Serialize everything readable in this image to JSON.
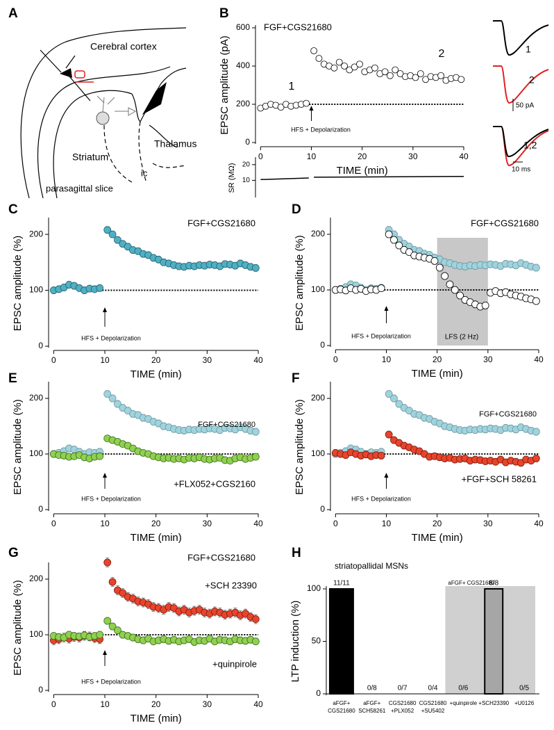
{
  "panel_labels": [
    "A",
    "B",
    "C",
    "D",
    "E",
    "F",
    "G",
    "H"
  ],
  "diagram": {
    "labels": [
      "Cerebral cortex",
      "Striatum",
      "Thalamus",
      "ic",
      "parasagittal slice"
    ]
  },
  "traces": {
    "labels": [
      "1",
      "2",
      "1,2"
    ],
    "scale_y": "50 pA",
    "scale_x": "10 ms"
  },
  "chart_data": [
    {
      "type": "scatter",
      "title": "FGF+CGS21680",
      "xlabel": "TIME (min)",
      "ylabel": "EPSC amplitude (pA)",
      "annotation": "HFS + Depolarization",
      "annotations": [
        "1",
        "2"
      ],
      "arrow_x": 10,
      "reference": 200,
      "xlim": [
        -1,
        40
      ],
      "xticks": [
        0,
        10,
        20,
        30,
        40
      ],
      "ylim": [
        0,
        600
      ],
      "yticks": [
        0,
        200,
        400,
        600
      ],
      "x": [
        0,
        1,
        2,
        3,
        4,
        5,
        6,
        7,
        8,
        9,
        10.5,
        11.5,
        12.5,
        13.5,
        14.5,
        15.5,
        16.5,
        17.5,
        18.5,
        19.5,
        20.5,
        21.5,
        22.5,
        23.5,
        24.5,
        25.5,
        26.5,
        27.5,
        28.5,
        29.5,
        30.5,
        31.5,
        32.5,
        33.5,
        34.5,
        35.5,
        36.5,
        37.5,
        38.5,
        39.5
      ],
      "series": [
        {
          "color": "#ffffff",
          "edge": "#000000",
          "values": [
            180,
            190,
            200,
            195,
            185,
            200,
            190,
            195,
            200,
            205,
            480,
            440,
            410,
            400,
            390,
            420,
            400,
            380,
            395,
            410,
            370,
            380,
            390,
            360,
            370,
            350,
            380,
            360,
            345,
            350,
            340,
            360,
            330,
            345,
            340,
            350,
            325,
            335,
            340,
            330
          ]
        }
      ]
    },
    {
      "type": "line",
      "ylabel": "SR (MΩ)",
      "xlim": [
        -1,
        40
      ],
      "ylim": [
        0,
        23
      ],
      "yticks": [
        10,
        20
      ],
      "x": [
        0,
        9.5,
        10,
        10.5,
        40
      ],
      "series": [
        {
          "color": "#000000",
          "values": [
            10.5,
            11.5,
            null,
            12,
            12.5
          ]
        }
      ]
    },
    {
      "type": "scatter",
      "title": "FGF+CGS21680",
      "xlabel": "TIME (min)",
      "ylabel": "EPSC amplitude (%)",
      "annotation": "HFS + Depolarization",
      "arrow_x": 10,
      "reference": 100,
      "xlim": [
        -1,
        40
      ],
      "xticks": [
        0,
        10,
        20,
        30,
        40
      ],
      "ylim": [
        0,
        225
      ],
      "yticks": [
        0,
        100,
        200
      ],
      "x": [
        0,
        1,
        2,
        3,
        4,
        5,
        6,
        7,
        8,
        9,
        10.5,
        11.5,
        12.5,
        13.5,
        14.5,
        15.5,
        16.5,
        17.5,
        18.5,
        19.5,
        20.5,
        21.5,
        22.5,
        23.5,
        24.5,
        25.5,
        26.5,
        27.5,
        28.5,
        29.5,
        30.5,
        31.5,
        32.5,
        33.5,
        34.5,
        35.5,
        36.5,
        37.5,
        38.5,
        39.5
      ],
      "series": [
        {
          "color": "#4fb0c4",
          "edge": "#24606e",
          "error": 6,
          "values": [
            100,
            102,
            105,
            110,
            108,
            104,
            100,
            103,
            102,
            104,
            208,
            200,
            190,
            183,
            178,
            172,
            170,
            165,
            163,
            158,
            155,
            150,
            148,
            145,
            143,
            142,
            144,
            143,
            145,
            144,
            146,
            145,
            143,
            147,
            146,
            144,
            148,
            145,
            142,
            140
          ]
        }
      ]
    },
    {
      "type": "scatter",
      "title": "FGF+CGS21680",
      "xlabel": "TIME (min)",
      "ylabel": "EPSC amplitude (%)",
      "annotation": "HFS + Depolarization",
      "arrow_x": 10,
      "reference": 100,
      "shade": [
        20,
        30
      ],
      "shade_label": "LFS (2 Hz)",
      "xlim": [
        -1,
        40
      ],
      "xticks": [
        0,
        10,
        20,
        30,
        40
      ],
      "ylim": [
        0,
        225
      ],
      "yticks": [
        0,
        100,
        200
      ],
      "x": [
        0,
        1,
        2,
        3,
        4,
        5,
        6,
        7,
        8,
        9,
        10.5,
        11.5,
        12.5,
        13.5,
        14.5,
        15.5,
        16.5,
        17.5,
        18.5,
        19.5,
        20.5,
        21.5,
        22.5,
        23.5,
        24.5,
        25.5,
        26.5,
        27.5,
        28.5,
        29.5,
        30.5,
        31.5,
        32.5,
        33.5,
        34.5,
        35.5,
        36.5,
        37.5,
        38.5,
        39.5
      ],
      "series": [
        {
          "color": "#9fd3dd",
          "edge": "#6f9aa3",
          "error": 6,
          "values": [
            100,
            102,
            105,
            110,
            108,
            104,
            100,
            103,
            102,
            104,
            208,
            200,
            190,
            183,
            178,
            172,
            170,
            165,
            163,
            158,
            155,
            150,
            148,
            145,
            143,
            142,
            144,
            143,
            145,
            144,
            146,
            145,
            143,
            147,
            146,
            144,
            148,
            145,
            142,
            140
          ]
        },
        {
          "color": "#ffffff",
          "edge": "#000000",
          "error": 6,
          "values": [
            100,
            101,
            99,
            103,
            100,
            102,
            98,
            101,
            100,
            103,
            200,
            190,
            180,
            172,
            168,
            162,
            160,
            158,
            156,
            152,
            140,
            125,
            110,
            100,
            90,
            82,
            78,
            74,
            70,
            72,
            95,
            98,
            94,
            96,
            92,
            90,
            88,
            85,
            83,
            80
          ]
        }
      ]
    },
    {
      "type": "scatter",
      "xlabel": "TIME (min)",
      "ylabel": "EPSC amplitude (%)",
      "annotation": "HFS + Depolarization",
      "arrow_x": 10,
      "reference": 100,
      "xlim": [
        -1,
        40
      ],
      "xticks": [
        0,
        10,
        20,
        30,
        40
      ],
      "ylim": [
        0,
        225
      ],
      "yticks": [
        0,
        100,
        200
      ],
      "x": [
        0,
        1,
        2,
        3,
        4,
        5,
        6,
        7,
        8,
        9,
        10.5,
        11.5,
        12.5,
        13.5,
        14.5,
        15.5,
        16.5,
        17.5,
        18.5,
        19.5,
        20.5,
        21.5,
        22.5,
        23.5,
        24.5,
        25.5,
        26.5,
        27.5,
        28.5,
        29.5,
        30.5,
        31.5,
        32.5,
        33.5,
        34.5,
        35.5,
        36.5,
        37.5,
        38.5,
        39.5
      ],
      "series": [
        {
          "name": "FGF+CGS21680",
          "color": "#9fd3dd",
          "edge": "#6f9aa3",
          "error": 6,
          "values": [
            100,
            102,
            105,
            110,
            108,
            104,
            100,
            103,
            102,
            104,
            208,
            200,
            190,
            183,
            178,
            172,
            170,
            165,
            163,
            158,
            155,
            150,
            148,
            145,
            143,
            142,
            144,
            143,
            145,
            144,
            146,
            145,
            143,
            147,
            146,
            144,
            148,
            145,
            142,
            140
          ]
        },
        {
          "name": "+FLX052+CGS2160",
          "color": "#8fd14f",
          "edge": "#3e6a1c",
          "error": 5,
          "values": [
            100,
            98,
            97,
            95,
            96,
            98,
            94,
            92,
            95,
            96,
            128,
            125,
            122,
            118,
            115,
            110,
            105,
            102,
            100,
            96,
            94,
            92,
            93,
            91,
            92,
            90,
            93,
            92,
            94,
            91,
            90,
            92,
            93,
            89,
            88,
            92,
            94,
            91,
            93,
            95
          ]
        }
      ]
    },
    {
      "type": "scatter",
      "xlabel": "TIME (min)",
      "ylabel": "EPSC amplitude (%)",
      "annotation": "HFS + Depolarization",
      "arrow_x": 10,
      "reference": 100,
      "xlim": [
        -1,
        40
      ],
      "xticks": [
        0,
        10,
        20,
        30,
        40
      ],
      "ylim": [
        0,
        225
      ],
      "yticks": [
        0,
        100,
        200
      ],
      "x": [
        0,
        1,
        2,
        3,
        4,
        5,
        6,
        7,
        8,
        9,
        10.5,
        11.5,
        12.5,
        13.5,
        14.5,
        15.5,
        16.5,
        17.5,
        18.5,
        19.5,
        20.5,
        21.5,
        22.5,
        23.5,
        24.5,
        25.5,
        26.5,
        27.5,
        28.5,
        29.5,
        30.5,
        31.5,
        32.5,
        33.5,
        34.5,
        35.5,
        36.5,
        37.5,
        38.5,
        39.5
      ],
      "series": [
        {
          "name": "FGF+CGS21680",
          "color": "#9fd3dd",
          "edge": "#6f9aa3",
          "error": 6,
          "values": [
            100,
            102,
            105,
            110,
            108,
            104,
            100,
            103,
            102,
            104,
            208,
            200,
            190,
            183,
            178,
            172,
            170,
            165,
            163,
            158,
            155,
            150,
            148,
            145,
            143,
            142,
            144,
            143,
            145,
            144,
            146,
            145,
            143,
            147,
            146,
            144,
            148,
            145,
            142,
            140
          ]
        },
        {
          "name": "+FGF+SCH 58261",
          "color": "#e8442c",
          "edge": "#7a1a0c",
          "error": 6,
          "values": [
            102,
            100,
            98,
            103,
            100,
            97,
            99,
            96,
            98,
            97,
            135,
            125,
            120,
            115,
            112,
            108,
            105,
            100,
            95,
            96,
            94,
            92,
            93,
            90,
            91,
            92,
            88,
            90,
            89,
            87,
            88,
            86,
            90,
            85,
            88,
            86,
            84,
            90,
            88,
            92
          ]
        }
      ]
    },
    {
      "type": "scatter",
      "title": "FGF+CGS21680",
      "xlabel": "TIME (min)",
      "ylabel": "EPSC amplitude (%)",
      "annotation": "HFS + Depolarization",
      "arrow_x": 10,
      "reference": 100,
      "xlim": [
        -1,
        40
      ],
      "xticks": [
        0,
        10,
        20,
        30,
        40
      ],
      "ylim": [
        0,
        225
      ],
      "yticks": [
        0,
        100,
        200
      ],
      "x": [
        0,
        1,
        2,
        3,
        4,
        5,
        6,
        7,
        8,
        9,
        10.5,
        11.5,
        12.5,
        13.5,
        14.5,
        15.5,
        16.5,
        17.5,
        18.5,
        19.5,
        20.5,
        21.5,
        22.5,
        23.5,
        24.5,
        25.5,
        26.5,
        27.5,
        28.5,
        29.5,
        30.5,
        31.5,
        32.5,
        33.5,
        34.5,
        35.5,
        36.5,
        37.5,
        38.5,
        39.5
      ],
      "series": [
        {
          "name": "+SCH 23390",
          "color": "#e8442c",
          "edge": "#7a1a0c",
          "error": 8,
          "values": [
            90,
            92,
            95,
            93,
            96,
            95,
            98,
            97,
            94,
            92,
            230,
            195,
            180,
            175,
            168,
            165,
            160,
            158,
            155,
            150,
            148,
            145,
            150,
            148,
            142,
            145,
            140,
            143,
            145,
            140,
            138,
            142,
            140,
            136,
            138,
            140,
            135,
            138,
            132,
            128
          ]
        },
        {
          "name": "+quinpirole",
          "color": "#8fd14f",
          "edge": "#3e6a1c",
          "error": 6,
          "values": [
            98,
            96,
            95,
            100,
            98,
            97,
            99,
            96,
            98,
            100,
            125,
            115,
            108,
            100,
            98,
            95,
            92,
            90,
            93,
            88,
            90,
            92,
            89,
            91,
            88,
            90,
            92,
            87,
            90,
            89,
            93,
            88,
            91,
            90,
            88,
            92,
            90,
            89,
            91,
            88
          ]
        }
      ]
    },
    {
      "type": "bar",
      "title": "striatopallidal MSNs",
      "ylabel": "LTP induction (%)",
      "shade_label": "aFGF+ CGS21680",
      "categories": [
        [
          "aFGF+",
          "CGS21680"
        ],
        [
          "aFGF+",
          "SCH58261"
        ],
        [
          "CGS21680",
          "+PLX052"
        ],
        [
          "CGS21680",
          "+SU5402"
        ],
        [
          "+quinpirole"
        ],
        [
          "+SCH23390"
        ],
        [
          "+U0126"
        ]
      ],
      "values": [
        100,
        0,
        0,
        0,
        0,
        100,
        0
      ],
      "value_labels": [
        "11/11",
        "0/8",
        "0/7",
        "0/4",
        "0/6",
        "8/8",
        "0/5"
      ],
      "colors": [
        "#000000",
        "#000000",
        "#000000",
        "#000000",
        "#000000",
        "#a6a6a6",
        "#000000"
      ],
      "ylim": [
        0,
        100
      ],
      "yticks": [
        0,
        50,
        100
      ]
    }
  ]
}
